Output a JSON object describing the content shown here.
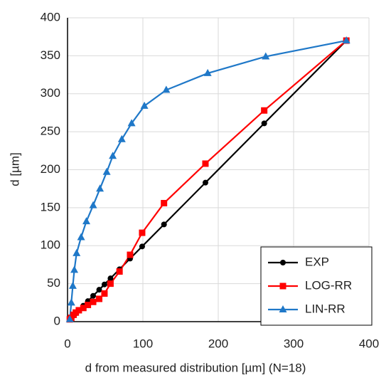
{
  "chart_data": {
    "type": "line",
    "xlabel": "d from measured distribution [µm] (N=18)",
    "ylabel": "d [µm]",
    "xlim": [
      0,
      400
    ],
    "xticks": [
      0,
      100,
      200,
      300,
      400
    ],
    "ylim": [
      0,
      400
    ],
    "yticks": [
      0,
      50,
      100,
      150,
      200,
      250,
      300,
      350,
      400
    ],
    "grid": true,
    "legend": "lower right",
    "series": [
      {
        "name": "EXP",
        "color": "#000000",
        "marker": "circle",
        "x": [
          3,
          5,
          8,
          11,
          15,
          21,
          27,
          34,
          42,
          49,
          57,
          69,
          83,
          99,
          128,
          183,
          261,
          370
        ],
        "values": [
          3,
          5,
          8,
          11,
          15,
          21,
          27,
          34,
          42,
          49,
          57,
          69,
          83,
          99,
          128,
          183,
          261,
          370
        ]
      },
      {
        "name": "LOG-RR",
        "color": "#ff0000",
        "marker": "square",
        "x": [
          3,
          5,
          8,
          11,
          15,
          21,
          27,
          34,
          42,
          49,
          57,
          69,
          83,
          99,
          128,
          183,
          261,
          370
        ],
        "values": [
          3,
          5,
          9,
          12,
          15,
          18,
          22,
          26,
          30,
          37,
          50,
          66,
          88,
          117,
          156,
          208,
          278,
          370
        ]
      },
      {
        "name": "LIN-RR",
        "color": "#1f78c8",
        "marker": "triangle",
        "x": [
          3,
          5,
          7,
          9,
          12,
          18,
          25,
          34,
          43,
          52,
          60,
          72,
          85,
          102,
          131,
          186,
          263,
          370
        ],
        "values": [
          3,
          25,
          47,
          68,
          90,
          111,
          132,
          153,
          175,
          197,
          218,
          240,
          261,
          284,
          305,
          327,
          349,
          370
        ]
      }
    ]
  }
}
